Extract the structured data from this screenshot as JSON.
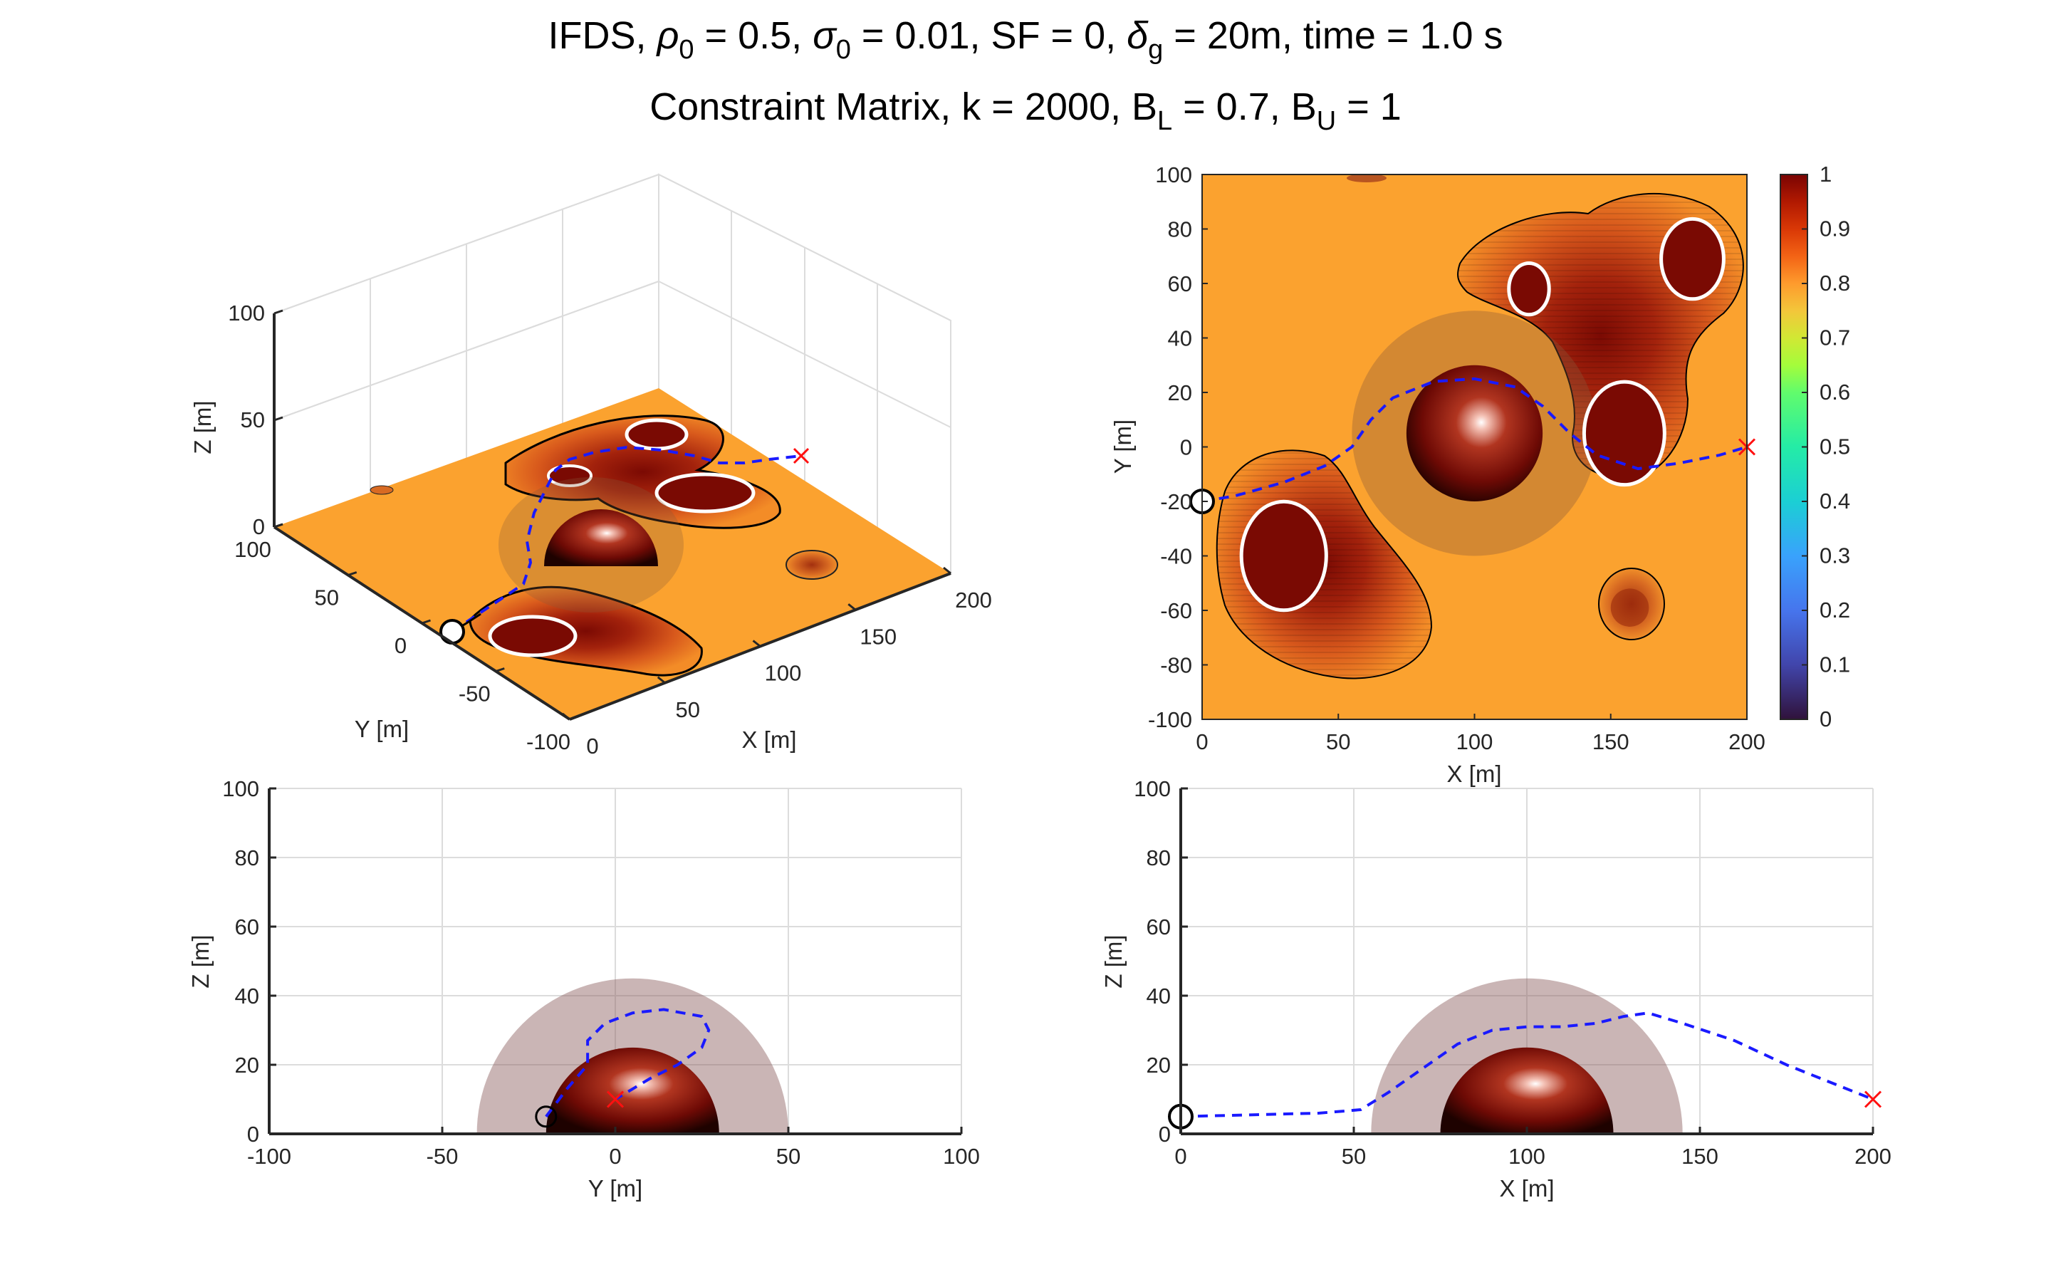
{
  "title": {
    "line1_prefix": "IFDS, ",
    "rho": "ρ",
    "rho_sub": "0",
    "rho_val": " = 0.5, ",
    "sigma": "σ",
    "sigma_sub": "0",
    "sigma_val": " = 0.01, SF = 0, ",
    "delta": "δ",
    "delta_sub": "g",
    "delta_val": " = 20m, time =  1.0 s",
    "line2_prefix": "Constraint Matrix, k = 2000, B",
    "bl_sub": "L",
    "bl_val": " = 0.7, B",
    "bu_sub": "U",
    "bu_val": " = 1"
  },
  "chart_data": [
    {
      "id": "view3d",
      "type": "scatter",
      "xlabel": "X [m]",
      "ylabel": "Y [m]",
      "zlabel": "Z [m]",
      "xticks": [
        "0",
        "50",
        "100",
        "150",
        "200"
      ],
      "yticks": [
        "-100",
        "-50",
        "0",
        "50",
        "100"
      ],
      "zticks": [
        "0",
        "50",
        "100"
      ],
      "xlim": [
        0,
        200
      ],
      "ylim": [
        -100,
        100
      ],
      "zlim": [
        0,
        100
      ]
    },
    {
      "id": "top",
      "type": "heatmap",
      "xlabel": "X [m]",
      "ylabel": "Y [m]",
      "xticks": [
        0,
        50,
        100,
        150,
        200
      ],
      "yticks": [
        -100,
        -80,
        -60,
        -40,
        -20,
        0,
        20,
        40,
        60,
        80,
        100
      ],
      "xlim": [
        0,
        200
      ],
      "ylim": [
        -100,
        100
      ],
      "colorbar": {
        "ticks": [
          "0",
          "0.1",
          "0.2",
          "0.3",
          "0.4",
          "0.5",
          "0.6",
          "0.7",
          "0.8",
          "0.9",
          "1"
        ],
        "range": [
          0,
          1
        ]
      },
      "obstacles": [
        {
          "x": 100,
          "y": 5,
          "r": 25
        },
        {
          "x": 100,
          "y": 5,
          "r": 45
        },
        {
          "x": 30,
          "y": -40,
          "r": 19
        },
        {
          "x": 155,
          "y": 5,
          "r": 18
        },
        {
          "x": 180,
          "y": 69,
          "r": 14
        },
        {
          "x": 120,
          "y": 58,
          "r": 9
        },
        {
          "x": 157,
          "y": -59,
          "r": 7
        }
      ],
      "start": {
        "x": 0,
        "y": -20
      },
      "goal": {
        "x": 200,
        "y": 0
      },
      "path": [
        [
          0,
          -20
        ],
        [
          12,
          -18
        ],
        [
          30,
          -13
        ],
        [
          45,
          -7
        ],
        [
          55,
          0
        ],
        [
          62,
          10
        ],
        [
          70,
          18
        ],
        [
          85,
          24
        ],
        [
          100,
          25
        ],
        [
          115,
          22
        ],
        [
          125,
          15
        ],
        [
          135,
          5
        ],
        [
          145,
          -3
        ],
        [
          160,
          -8
        ],
        [
          175,
          -6
        ],
        [
          190,
          -3
        ],
        [
          200,
          0
        ]
      ]
    },
    {
      "id": "side_yz",
      "type": "line",
      "xlabel": "Y [m]",
      "ylabel": "Z [m]",
      "xticks": [
        -100,
        -50,
        0,
        50,
        100
      ],
      "yticks": [
        0,
        20,
        40,
        60,
        80,
        100
      ],
      "xlim": [
        -100,
        100
      ],
      "ylim": [
        0,
        100
      ],
      "start": {
        "x": -20,
        "z": 5
      },
      "goal": {
        "x": 0,
        "z": 10
      },
      "path": [
        [
          -20,
          5
        ],
        [
          -14,
          13
        ],
        [
          -8,
          20
        ],
        [
          -8,
          27
        ],
        [
          -3,
          32
        ],
        [
          5,
          35
        ],
        [
          14,
          36
        ],
        [
          25,
          34
        ],
        [
          27,
          30
        ],
        [
          25,
          25
        ],
        [
          18,
          20
        ],
        [
          10,
          16
        ],
        [
          5,
          13
        ],
        [
          0,
          10
        ]
      ]
    },
    {
      "id": "side_xz",
      "type": "line",
      "xlabel": "X [m]",
      "ylabel": "Z [m]",
      "xticks": [
        0,
        50,
        100,
        150,
        200
      ],
      "yticks": [
        0,
        20,
        40,
        60,
        80,
        100
      ],
      "xlim": [
        0,
        200
      ],
      "ylim": [
        0,
        100
      ],
      "start": {
        "x": 0,
        "z": 5
      },
      "goal": {
        "x": 200,
        "z": 10
      },
      "path": [
        [
          0,
          5
        ],
        [
          20,
          5.5
        ],
        [
          40,
          6
        ],
        [
          52,
          7
        ],
        [
          60,
          12
        ],
        [
          70,
          19
        ],
        [
          80,
          26
        ],
        [
          90,
          30
        ],
        [
          100,
          31
        ],
        [
          110,
          31
        ],
        [
          120,
          32
        ],
        [
          128,
          34
        ],
        [
          135,
          35
        ],
        [
          145,
          32
        ],
        [
          160,
          27
        ],
        [
          175,
          20
        ],
        [
          190,
          14
        ],
        [
          200,
          10
        ]
      ]
    }
  ],
  "colors": {
    "background": "#fba22f",
    "obstacle_dark": "#7a0c05",
    "path": "#1a1aff",
    "goal": "#ff1010"
  }
}
